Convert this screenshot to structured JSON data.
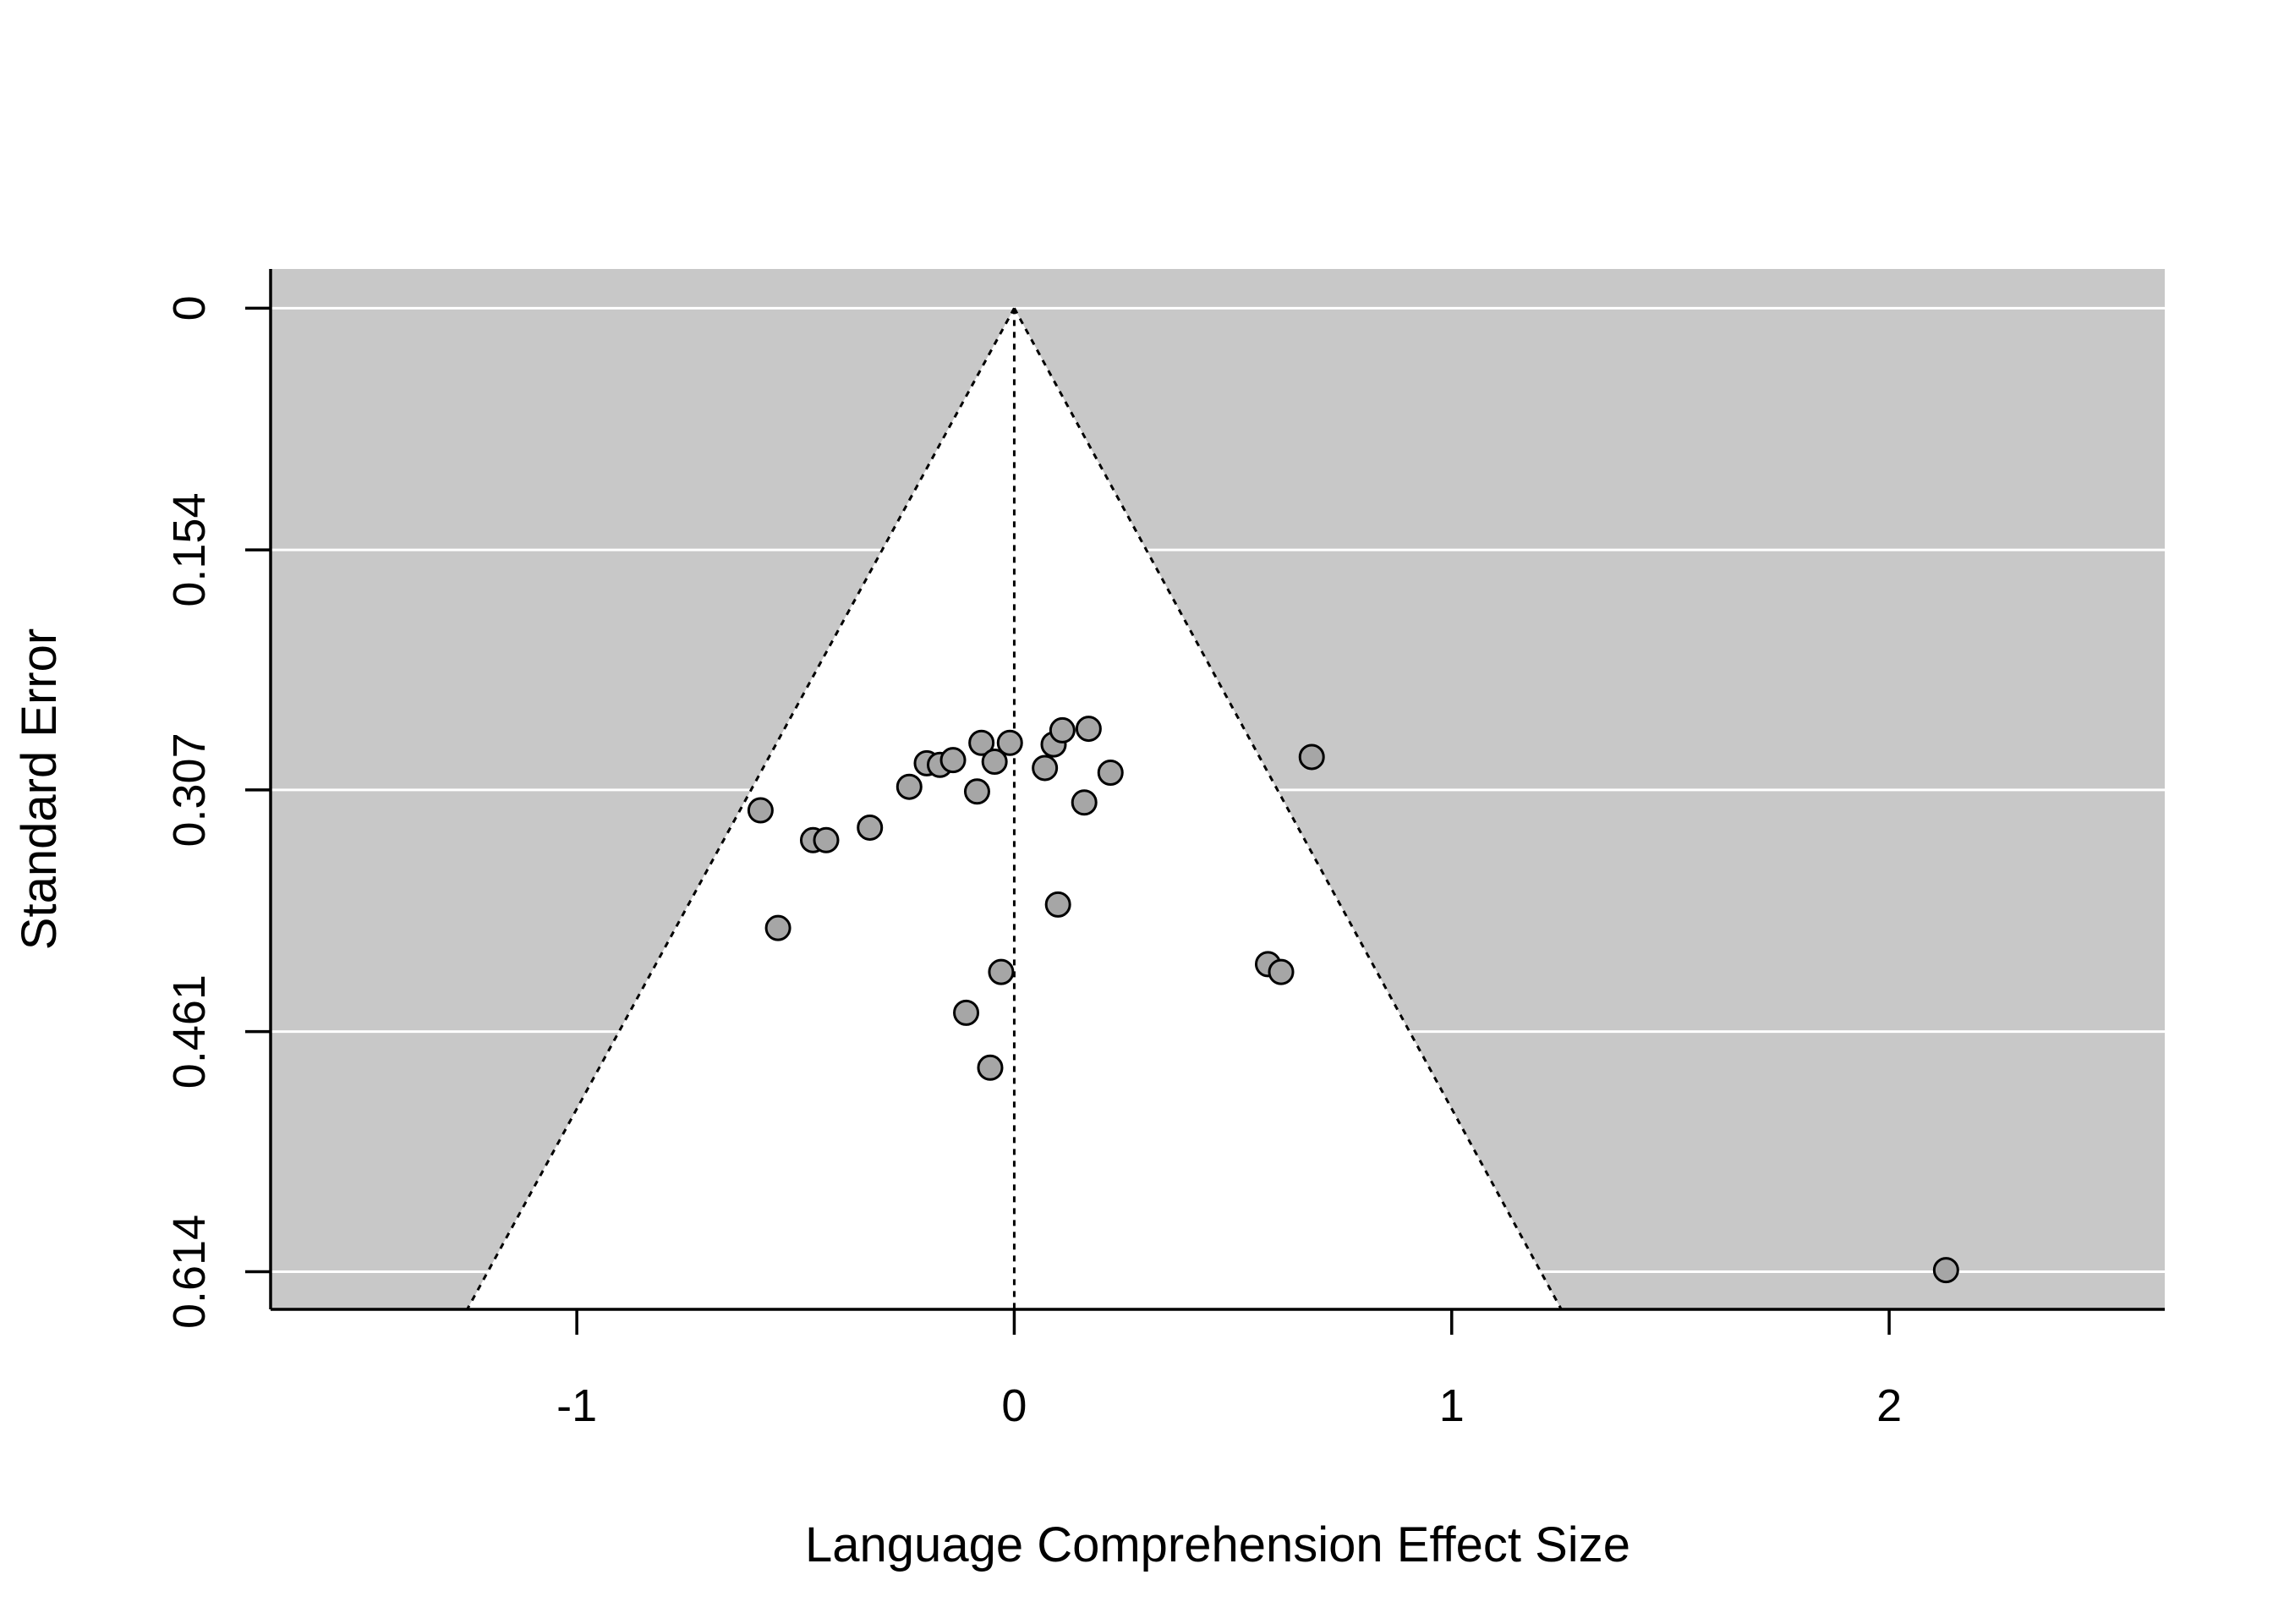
{
  "chart_data": {
    "type": "scatter",
    "subtype": "funnel",
    "title": "",
    "xlabel": "Language Comprehension Effect Size",
    "ylabel": "Standard Error",
    "xlim": [
      -1.7,
      2.63
    ],
    "ylim": [
      0.638,
      -0.025
    ],
    "y_reversed": true,
    "x_ticks": [
      "-1",
      "0",
      "1",
      "2"
    ],
    "x_tick_values": [
      -1,
      0,
      1,
      2
    ],
    "y_ticks": [
      "0",
      "0.154",
      "0.307",
      "0.461",
      "0.614"
    ],
    "y_tick_values": [
      0,
      0.154,
      0.307,
      0.461,
      0.614
    ],
    "grid": "horizontal",
    "reference_line_x": 0,
    "funnel_multiplier": 1.96,
    "colors": {
      "panel_background": "#c8c8c8",
      "funnel_fill": "#ffffff",
      "grid": "#ffffff",
      "point_fill": "#a6a6a6",
      "point_stroke": "#000000"
    },
    "points": [
      {
        "x": -0.58,
        "y": 0.32
      },
      {
        "x": -0.54,
        "y": 0.395
      },
      {
        "x": -0.46,
        "y": 0.339
      },
      {
        "x": -0.43,
        "y": 0.339
      },
      {
        "x": -0.33,
        "y": 0.331
      },
      {
        "x": -0.24,
        "y": 0.305
      },
      {
        "x": -0.2,
        "y": 0.29
      },
      {
        "x": -0.17,
        "y": 0.291
      },
      {
        "x": -0.14,
        "y": 0.288
      },
      {
        "x": -0.11,
        "y": 0.449
      },
      {
        "x": -0.085,
        "y": 0.308
      },
      {
        "x": -0.075,
        "y": 0.277
      },
      {
        "x": -0.055,
        "y": 0.484
      },
      {
        "x": -0.045,
        "y": 0.289
      },
      {
        "x": -0.03,
        "y": 0.423
      },
      {
        "x": -0.01,
        "y": 0.277
      },
      {
        "x": 0.07,
        "y": 0.293
      },
      {
        "x": 0.09,
        "y": 0.278
      },
      {
        "x": 0.1,
        "y": 0.38
      },
      {
        "x": 0.11,
        "y": 0.269
      },
      {
        "x": 0.16,
        "y": 0.315
      },
      {
        "x": 0.17,
        "y": 0.268
      },
      {
        "x": 0.22,
        "y": 0.296
      },
      {
        "x": 0.58,
        "y": 0.418
      },
      {
        "x": 0.61,
        "y": 0.423
      },
      {
        "x": 0.68,
        "y": 0.286
      },
      {
        "x": 2.13,
        "y": 0.613
      }
    ]
  }
}
